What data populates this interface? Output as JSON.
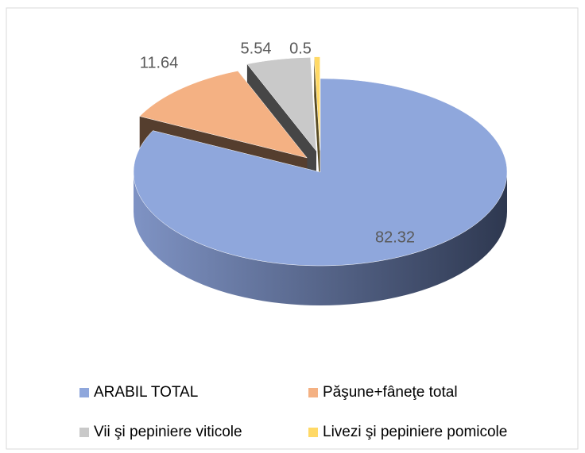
{
  "chart_data": {
    "type": "pie",
    "three_d": true,
    "categories": [
      "ARABIL TOTAL",
      "Păşune+fâneţe total",
      "Vii şi pepiniere viticole",
      "Livezi şi pepiniere pomicole"
    ],
    "values": [
      82.32,
      11.64,
      5.54,
      0.5
    ],
    "colors": [
      "#8fa7dc",
      "#f4b183",
      "#c9c9c9",
      "#ffd966"
    ],
    "legend": "bottom"
  }
}
